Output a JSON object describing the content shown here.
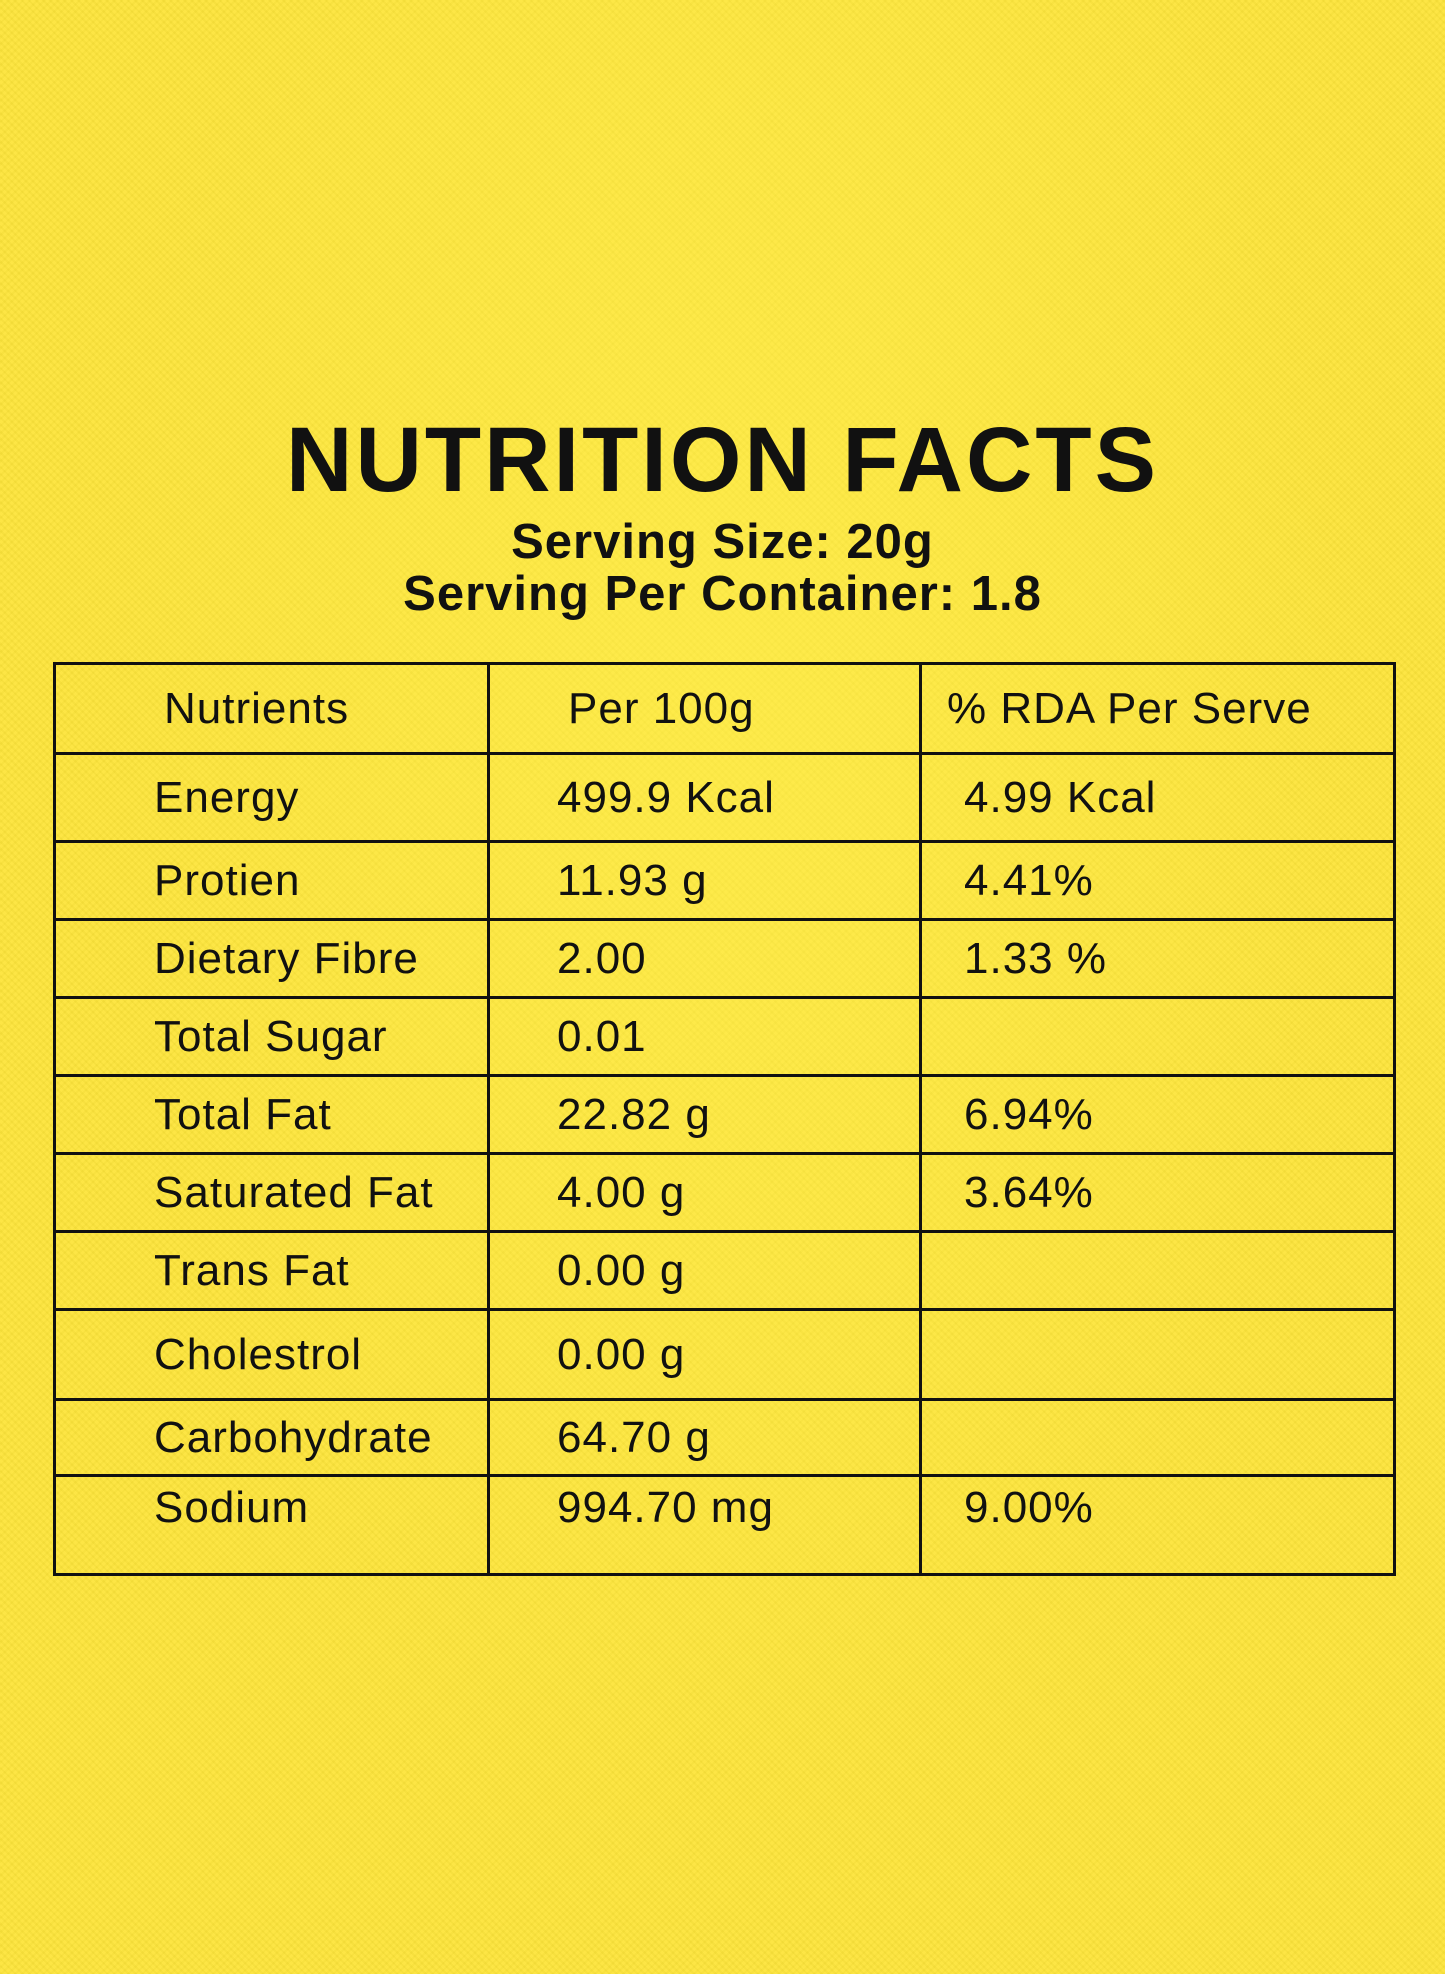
{
  "header": {
    "title": "NUTRITION FACTS",
    "serving_size": "Serving Size: 20g",
    "servings_per_container": "Serving Per Container: 1.8"
  },
  "table": {
    "columns": [
      "Nutrients",
      "Per 100g",
      "% RDA Per Serve"
    ],
    "rows": [
      {
        "nutrient": "Energy",
        "per_100g": "499.9 Kcal",
        "rda": "4.99 Kcal"
      },
      {
        "nutrient": "Protien",
        "per_100g": "11.93 g",
        "rda": "4.41%"
      },
      {
        "nutrient": "Dietary Fibre",
        "per_100g": "2.00",
        "rda": "1.33 %"
      },
      {
        "nutrient": "Total Sugar",
        "per_100g": "0.01",
        "rda": ""
      },
      {
        "nutrient": "Total Fat",
        "per_100g": "22.82 g",
        "rda": "6.94%"
      },
      {
        "nutrient": "Saturated Fat",
        "per_100g": "4.00 g",
        "rda": "3.64%"
      },
      {
        "nutrient": "Trans Fat",
        "per_100g": "0.00 g",
        "rda": ""
      },
      {
        "nutrient": "Cholestrol",
        "per_100g": "0.00 g",
        "rda": ""
      },
      {
        "nutrient": "Carbohydrate",
        "per_100g": "64.70 g",
        "rda": ""
      },
      {
        "nutrient": "Sodium",
        "per_100g": "994.70 mg",
        "rda": "9.00%"
      }
    ]
  }
}
